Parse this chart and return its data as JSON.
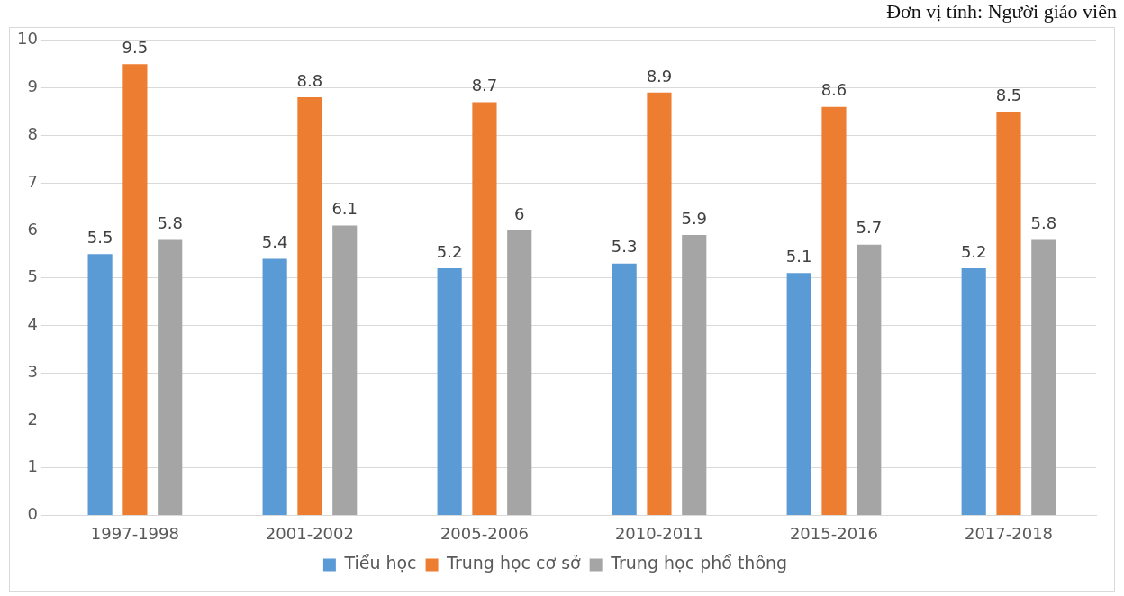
{
  "chart_data": {
    "type": "bar",
    "annotations": [
      "Đơn vị tính: Người giáo viên"
    ],
    "categories": [
      "1997-1998",
      "2001-2002",
      "2005-2006",
      "2010-2011",
      "2015-2016",
      "2017-2018"
    ],
    "series": [
      {
        "name": "Tiểu học",
        "color": "#5b9bd5",
        "values": [
          5.5,
          5.4,
          5.2,
          5.3,
          5.1,
          5.2
        ]
      },
      {
        "name": "Trung học cơ sở",
        "color": "#ed7d31",
        "values": [
          9.5,
          8.8,
          8.7,
          8.9,
          8.6,
          8.5
        ]
      },
      {
        "name": "Trung học phổ thông",
        "color": "#a5a5a5",
        "values": [
          5.8,
          6.1,
          6,
          5.9,
          5.7,
          5.8
        ]
      }
    ],
    "ylim": [
      0,
      10
    ],
    "yticks": [
      0,
      1,
      2,
      3,
      4,
      5,
      6,
      7,
      8,
      9,
      10
    ],
    "grid": "y",
    "legend": "bottom",
    "data_labels": true
  }
}
